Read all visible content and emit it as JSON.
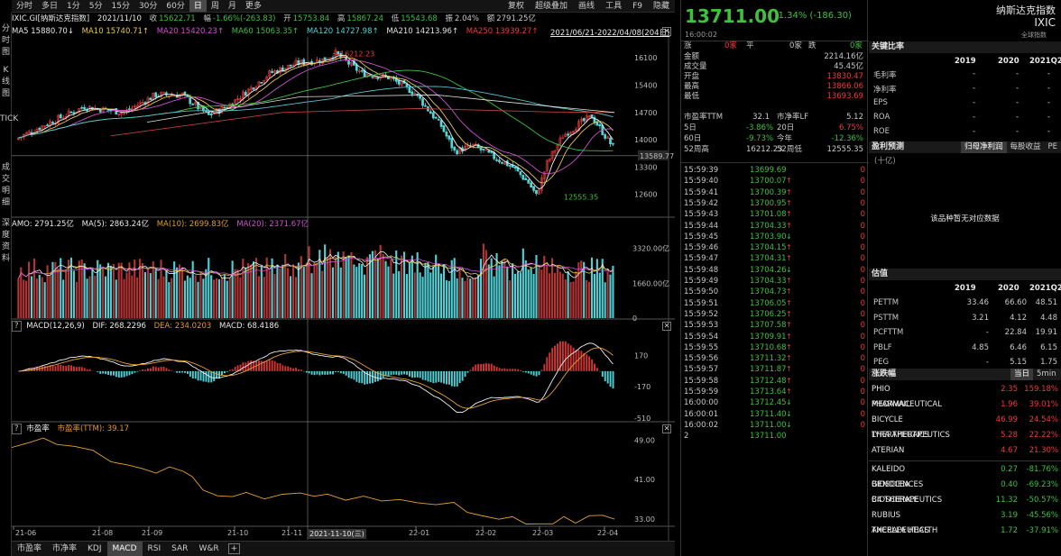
{
  "toolbar": {
    "items": [
      "分时",
      "多日",
      "1分",
      "5分",
      "15分",
      "30分",
      "60分",
      "日",
      "周",
      "月",
      "更多"
    ],
    "active": "日",
    "right": [
      "复权",
      "超级叠加",
      "画线",
      "工具",
      "F9",
      "隐藏"
    ]
  },
  "sidebar": [
    "分时图",
    "K线图",
    "TICK",
    "成交明细",
    "深度资料"
  ],
  "quote": {
    "code": "IXIC.GI[纳斯达克指数]",
    "date": "2021/11/10",
    "close_label": "收",
    "close": "15622.71",
    "chg_label": "幅",
    "chg": "-1.66%(-263.83)",
    "open_label": "开",
    "open": "15753.84",
    "high_label": "高",
    "high": "15867.24",
    "low_label": "低",
    "low": "15543.68",
    "amp_label": "振",
    "amp": "2.04%",
    "amt_label": "额",
    "amt": "2791.25亿"
  },
  "ma": {
    "ma5": "MA5 15880.70↓",
    "ma10": "MA10 15740.71↑",
    "ma20": "MA20 15420.23↑",
    "ma60": "MA60 15063.35↑",
    "ma120": "MA120 14727.98↑",
    "ma210": "MA210 14213.96↑",
    "ma250": "MA250 13939.27↑",
    "range": "2021/06/21-2022/04/08(204日)"
  },
  "price_axis": [
    "16100",
    "15400",
    "14700",
    "14000",
    "13589.77",
    "13300",
    "12600"
  ],
  "annot": {
    "high": "16212.23",
    "low": "12555.35"
  },
  "vol": {
    "amo": "AMO: 2791.25亿",
    "ma5": "MA(5): 2863.24亿",
    "ma10": "MA(10): 2699.83亿",
    "ma20": "MA(20): 2371.67亿",
    "axis": [
      "3320.00亿",
      "1660.00亿",
      "0"
    ]
  },
  "macd": {
    "title": "MACD(12,26,9)",
    "dif": "DIF: 268.2296",
    "dea": "DEA: 234.0203",
    "macd": "MACD: 68.4186",
    "axis": [
      "170",
      "-170",
      "-510"
    ]
  },
  "pe": {
    "title": "市盈率",
    "ttm": "市盈率(TTM): 39.17",
    "axis": [
      "49.00",
      "41.00",
      "33.00"
    ]
  },
  "xaxis": [
    "21-06",
    "21-08",
    "21-09",
    "21-10",
    "21-11",
    "22-01",
    "22-02",
    "22-03",
    "22-04"
  ],
  "cursor_date": "2021-11-10(三)",
  "bottom_tabs": [
    "市盈率",
    "市净率",
    "KDJ",
    "MACD",
    "RSI",
    "SAR",
    "W&R"
  ],
  "bottom_active": "MACD",
  "price": {
    "last": "13711.00",
    "chg": "-1.34% (-186.30)",
    "time": "16:00:02",
    "name": "纳斯达克指数",
    "code": "IXIC",
    "global": "全球指数"
  },
  "stats": {
    "zhang": "涨",
    "zhang_v": "0家",
    "ping": "平",
    "ping_v": "0家",
    "die": "跌",
    "die_v": "0家",
    "amount_l": "金额",
    "amount": "2214.16亿",
    "vol_l": "成交量",
    "vol": "45.45亿",
    "open_l": "开盘",
    "open": "13830.47",
    "high_l": "最高",
    "high": "13866.06",
    "low_l": "最低",
    "low": "13693.69",
    "pe_l": "市盈率TTM",
    "pe": "32.1",
    "pb_l": "市净率LF",
    "pb": "5.12",
    "d5_l": "5日",
    "d5": "-3.86%",
    "d20_l": "20日",
    "d20": "6.75%",
    "d60_l": "60日",
    "d60": "-9.73%",
    "ytd_l": "今年",
    "ytd": "-12.36%",
    "w52h_l": "52周高",
    "w52h": "16212.23",
    "w52l_l": "52周低",
    "w52l": "12555.35"
  },
  "ticks": [
    [
      "15:59:39",
      "13699.69",
      "",
      "0"
    ],
    [
      "15:59:40",
      "13700.07",
      "up",
      "0"
    ],
    [
      "15:59:41",
      "13700.39",
      "up",
      "0"
    ],
    [
      "15:59:42",
      "13700.95",
      "up",
      "0"
    ],
    [
      "15:59:43",
      "13701.08",
      "up",
      "0"
    ],
    [
      "15:59:44",
      "13704.33",
      "up",
      "0"
    ],
    [
      "15:59:45",
      "13703.90",
      "down",
      "0"
    ],
    [
      "15:59:46",
      "13704.15",
      "up",
      "0"
    ],
    [
      "15:59:47",
      "13704.31",
      "up",
      "0"
    ],
    [
      "15:59:48",
      "13704.26",
      "down",
      "0"
    ],
    [
      "15:59:49",
      "13704.33",
      "up",
      "0"
    ],
    [
      "15:59:50",
      "13704.73",
      "up",
      "0"
    ],
    [
      "15:59:51",
      "13706.05",
      "up",
      "0"
    ],
    [
      "15:59:52",
      "13706.25",
      "up",
      "0"
    ],
    [
      "15:59:53",
      "13707.58",
      "up",
      "0"
    ],
    [
      "15:59:54",
      "13709.91",
      "up",
      "0"
    ],
    [
      "15:59:55",
      "13710.68",
      "up",
      "0"
    ],
    [
      "15:59:56",
      "13711.32",
      "up",
      "0"
    ],
    [
      "15:59:57",
      "13711.87",
      "up",
      "0"
    ],
    [
      "15:59:58",
      "13712.48",
      "up",
      "0"
    ],
    [
      "15:59:59",
      "13713.64",
      "up",
      "0"
    ],
    [
      "16:00:00",
      "13712.45",
      "down",
      "0"
    ],
    [
      "16:00:01",
      "13711.40",
      "down",
      "0"
    ],
    [
      "16:00:02",
      "13711.00",
      "down",
      "0"
    ],
    [
      "2",
      "13711.00",
      "",
      ""
    ]
  ],
  "ratio": {
    "title": "关键比率",
    "years": [
      "2019",
      "2020",
      "2021Q2"
    ],
    "rows": [
      [
        "毛利率",
        "-",
        "-",
        "-"
      ],
      [
        "净利率",
        "-",
        "-",
        "-"
      ],
      [
        "EPS",
        "-",
        "-",
        "-"
      ],
      [
        "ROA",
        "-",
        "-",
        "-"
      ],
      [
        "ROE",
        "-",
        "-",
        "-"
      ]
    ]
  },
  "forecast": {
    "title": "盈利预测",
    "tabs": [
      "归母净利润",
      "每股收益",
      "PE"
    ],
    "unit": "(十亿)",
    "empty": "该品种暂无对应数据"
  },
  "valuation": {
    "title": "估值",
    "years": [
      "2019",
      "2020",
      "2021Q2"
    ],
    "rows": [
      [
        "PETTM",
        "33.46",
        "66.60",
        "48.51"
      ],
      [
        "PSTTM",
        "3.21",
        "4.12",
        "4.48"
      ],
      [
        "PCFTTM",
        "-",
        "22.84",
        "19.91"
      ],
      [
        "PBLF",
        "4.85",
        "6.46",
        "6.15"
      ],
      [
        "PEG",
        "-",
        "5.15",
        "1.75"
      ]
    ]
  },
  "movers": {
    "title": "涨跌幅",
    "tabs": [
      "当日",
      "5min"
    ],
    "up": [
      [
        "PHIO PHARMACEUTICAL",
        "2.35",
        "159.18%"
      ],
      [
        "MEDAVAIL",
        "1.96",
        "39.01%"
      ],
      [
        "BICYCLE THERAPEUTICS",
        "46.99",
        "24.54%"
      ],
      [
        "LYRA THERAPEUTICS",
        "5.28",
        "22.22%"
      ],
      [
        "ATERIAN",
        "4.67",
        "21.30%"
      ]
    ],
    "down": [
      [
        "KALEIDO BIOSCIENCES",
        "0.27",
        "-81.76%"
      ],
      [
        "GENOCEA BIOSCIENCE",
        "0.40",
        "-69.23%"
      ],
      [
        "C4 THERAPEUTICS",
        "11.32",
        "-50.57%"
      ],
      [
        "RUBIUS THERAPEUTICS",
        "3.19",
        "-45.56%"
      ],
      [
        "AXCELLA HEALTH",
        "1.72",
        "-37.91%"
      ]
    ]
  }
}
